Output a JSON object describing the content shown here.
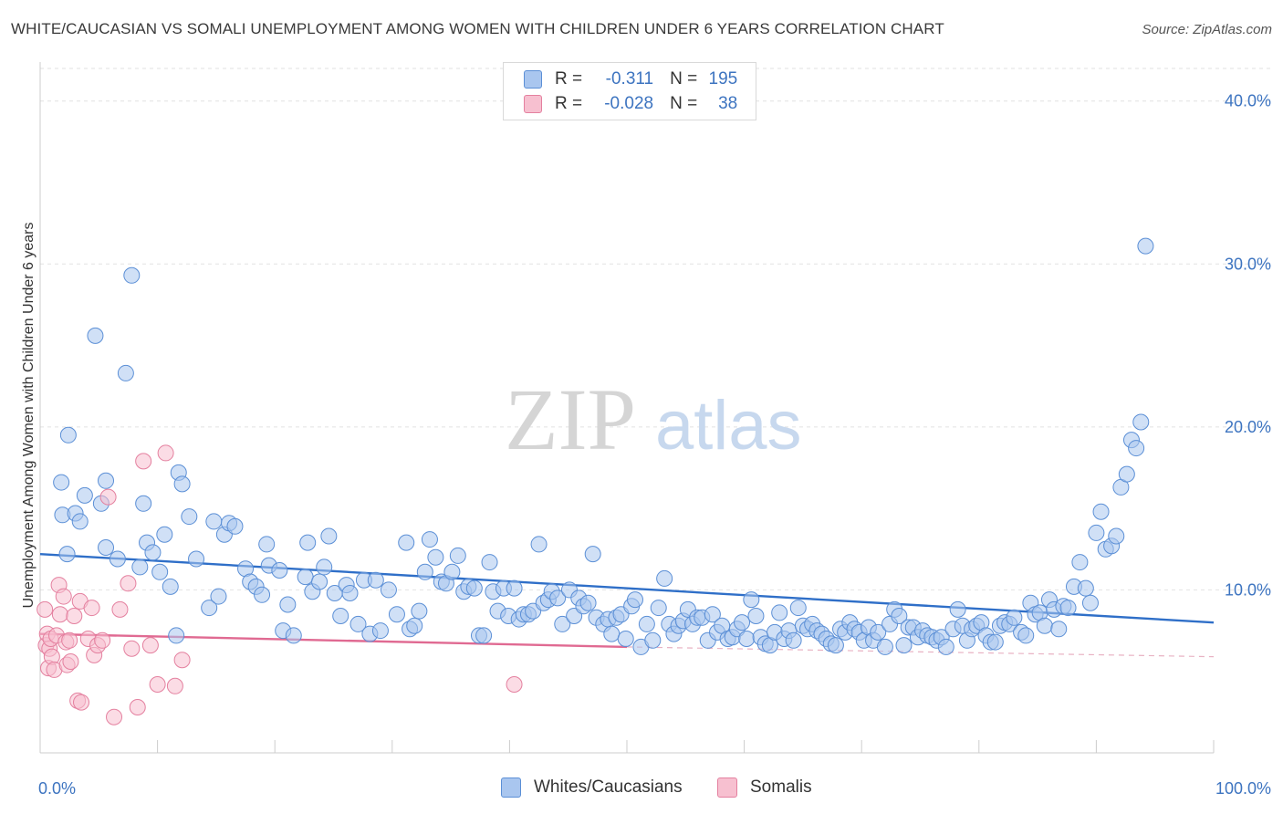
{
  "title": "WHITE/CAUCASIAN VS SOMALI UNEMPLOYMENT AMONG WOMEN WITH CHILDREN UNDER 6 YEARS CORRELATION CHART",
  "source": "Source: ZipAtlas.com",
  "watermark": {
    "zip": "ZIP",
    "atlas": "atlas"
  },
  "legend": {
    "rows": [
      {
        "r_label": "R =",
        "r_value": "-0.311",
        "n_label": "N =",
        "n_value": "195",
        "color": "#a9c6ef",
        "border": "#5b8fd6"
      },
      {
        "r_label": "R =",
        "r_value": "-0.028",
        "n_label": "N =",
        "n_value": "38",
        "color": "#f7c0d0",
        "border": "#e4809f"
      }
    ]
  },
  "bottom_legend": [
    {
      "label": "Whites/Caucasians",
      "color": "#a9c6ef",
      "border": "#5b8fd6"
    },
    {
      "label": "Somalis",
      "color": "#f7c0d0",
      "border": "#e4809f"
    }
  ],
  "chart_data": {
    "type": "scatter",
    "ylabel": "Unemployment Among Women with Children Under 6 years",
    "xlim": [
      0,
      100
    ],
    "ylim": [
      0,
      42
    ],
    "x_tick_labels": [
      {
        "x": 0,
        "label": "0.0%"
      },
      {
        "x": 100,
        "label": "100.0%"
      }
    ],
    "y_tick_labels": [
      {
        "y": 10,
        "label": "10.0%"
      },
      {
        "y": 20,
        "label": "20.0%"
      },
      {
        "y": 30,
        "label": "30.0%"
      },
      {
        "y": 40,
        "label": "40.0%"
      }
    ],
    "gridlines": [
      10,
      20,
      30,
      40
    ],
    "series": [
      {
        "name": "Whites/Caucasians",
        "color": "#a9c6ef",
        "stroke": "#5b8fd6",
        "trend": {
          "x1": 0,
          "y1": 12.2,
          "x2": 100,
          "y2": 8.0,
          "color": "#2f6fc8"
        },
        "points": [
          [
            1.8,
            16.6
          ],
          [
            1.9,
            14.6
          ],
          [
            2.4,
            19.5
          ],
          [
            2.3,
            12.2
          ],
          [
            3.0,
            14.7
          ],
          [
            3.4,
            14.2
          ],
          [
            3.8,
            15.8
          ],
          [
            4.7,
            25.6
          ],
          [
            5.2,
            15.3
          ],
          [
            5.6,
            16.7
          ],
          [
            5.6,
            12.6
          ],
          [
            6.6,
            11.9
          ],
          [
            7.3,
            23.3
          ],
          [
            7.8,
            29.3
          ],
          [
            8.5,
            11.4
          ],
          [
            8.8,
            15.3
          ],
          [
            9.1,
            12.9
          ],
          [
            9.6,
            12.3
          ],
          [
            10.2,
            11.1
          ],
          [
            10.6,
            13.4
          ],
          [
            11.1,
            10.2
          ],
          [
            11.6,
            7.2
          ],
          [
            11.8,
            17.2
          ],
          [
            12.1,
            16.5
          ],
          [
            12.7,
            14.5
          ],
          [
            13.3,
            11.9
          ],
          [
            14.4,
            8.9
          ],
          [
            14.8,
            14.2
          ],
          [
            15.2,
            9.6
          ],
          [
            15.7,
            13.4
          ],
          [
            16.1,
            14.1
          ],
          [
            16.6,
            13.9
          ],
          [
            17.5,
            11.3
          ],
          [
            17.9,
            10.5
          ],
          [
            18.4,
            10.2
          ],
          [
            18.9,
            9.7
          ],
          [
            19.3,
            12.8
          ],
          [
            19.5,
            11.5
          ],
          [
            20.4,
            11.2
          ],
          [
            20.7,
            7.5
          ],
          [
            21.1,
            9.1
          ],
          [
            21.6,
            7.2
          ],
          [
            22.6,
            10.8
          ],
          [
            22.8,
            12.9
          ],
          [
            23.2,
            9.9
          ],
          [
            23.8,
            10.5
          ],
          [
            24.2,
            11.4
          ],
          [
            24.6,
            13.3
          ],
          [
            25.1,
            9.8
          ],
          [
            25.6,
            8.4
          ],
          [
            26.1,
            10.3
          ],
          [
            26.4,
            9.8
          ],
          [
            27.1,
            7.9
          ],
          [
            27.6,
            10.6
          ],
          [
            28.1,
            7.3
          ],
          [
            28.6,
            10.6
          ],
          [
            29.0,
            7.5
          ],
          [
            29.7,
            10.0
          ],
          [
            30.4,
            8.5
          ],
          [
            31.2,
            12.9
          ],
          [
            31.5,
            7.6
          ],
          [
            31.9,
            7.8
          ],
          [
            32.3,
            8.7
          ],
          [
            32.8,
            11.1
          ],
          [
            33.2,
            13.1
          ],
          [
            33.7,
            12.0
          ],
          [
            34.2,
            10.5
          ],
          [
            34.6,
            10.4
          ],
          [
            35.1,
            11.1
          ],
          [
            35.6,
            12.1
          ],
          [
            36.1,
            9.9
          ],
          [
            36.5,
            10.2
          ],
          [
            37.0,
            10.1
          ],
          [
            37.4,
            7.2
          ],
          [
            37.8,
            7.2
          ],
          [
            38.3,
            11.7
          ],
          [
            38.6,
            9.9
          ],
          [
            39.0,
            8.7
          ],
          [
            39.5,
            10.1
          ],
          [
            39.9,
            8.4
          ],
          [
            40.4,
            10.1
          ],
          [
            40.8,
            8.2
          ],
          [
            41.2,
            8.5
          ],
          [
            41.6,
            8.5
          ],
          [
            42.0,
            8.7
          ],
          [
            42.5,
            12.8
          ],
          [
            42.9,
            9.2
          ],
          [
            43.3,
            9.4
          ],
          [
            43.6,
            9.9
          ],
          [
            44.1,
            9.5
          ],
          [
            44.5,
            7.9
          ],
          [
            45.1,
            10.0
          ],
          [
            45.5,
            8.4
          ],
          [
            45.9,
            9.5
          ],
          [
            46.3,
            9.0
          ],
          [
            46.7,
            9.2
          ],
          [
            47.1,
            12.2
          ],
          [
            47.4,
            8.3
          ],
          [
            48.0,
            7.9
          ],
          [
            48.4,
            8.2
          ],
          [
            48.7,
            7.3
          ],
          [
            49.1,
            8.3
          ],
          [
            49.5,
            8.5
          ],
          [
            49.9,
            7.0
          ],
          [
            50.4,
            9.0
          ],
          [
            50.7,
            9.4
          ],
          [
            51.2,
            6.5
          ],
          [
            51.7,
            7.9
          ],
          [
            52.2,
            6.9
          ],
          [
            52.7,
            8.9
          ],
          [
            53.2,
            10.7
          ],
          [
            53.6,
            7.9
          ],
          [
            54.0,
            7.3
          ],
          [
            54.4,
            7.8
          ],
          [
            54.8,
            8.1
          ],
          [
            55.2,
            8.8
          ],
          [
            55.6,
            7.9
          ],
          [
            56.0,
            8.3
          ],
          [
            56.4,
            8.3
          ],
          [
            56.9,
            6.9
          ],
          [
            57.3,
            8.5
          ],
          [
            57.7,
            7.4
          ],
          [
            58.1,
            7.8
          ],
          [
            58.6,
            7.0
          ],
          [
            59.0,
            7.1
          ],
          [
            59.4,
            7.6
          ],
          [
            59.8,
            8.0
          ],
          [
            60.2,
            7.0
          ],
          [
            60.6,
            9.4
          ],
          [
            61.0,
            8.4
          ],
          [
            61.4,
            7.1
          ],
          [
            61.8,
            6.7
          ],
          [
            62.2,
            6.6
          ],
          [
            62.6,
            7.4
          ],
          [
            63.0,
            8.6
          ],
          [
            63.4,
            7.0
          ],
          [
            63.8,
            7.5
          ],
          [
            64.2,
            6.9
          ],
          [
            64.6,
            8.9
          ],
          [
            65.0,
            7.8
          ],
          [
            65.4,
            7.6
          ],
          [
            65.8,
            7.9
          ],
          [
            66.2,
            7.5
          ],
          [
            66.6,
            7.3
          ],
          [
            67.0,
            7.0
          ],
          [
            67.4,
            6.7
          ],
          [
            67.8,
            6.6
          ],
          [
            68.2,
            7.6
          ],
          [
            68.6,
            7.4
          ],
          [
            69.0,
            8.0
          ],
          [
            69.4,
            7.6
          ],
          [
            69.8,
            7.4
          ],
          [
            70.2,
            6.9
          ],
          [
            70.6,
            7.7
          ],
          [
            71.0,
            6.9
          ],
          [
            71.4,
            7.4
          ],
          [
            72.0,
            6.5
          ],
          [
            72.4,
            7.9
          ],
          [
            72.8,
            8.8
          ],
          [
            73.2,
            8.4
          ],
          [
            73.6,
            6.6
          ],
          [
            74.0,
            7.7
          ],
          [
            74.4,
            7.7
          ],
          [
            74.8,
            7.1
          ],
          [
            75.2,
            7.5
          ],
          [
            75.6,
            7.2
          ],
          [
            76.0,
            7.1
          ],
          [
            76.4,
            6.9
          ],
          [
            76.8,
            7.1
          ],
          [
            77.2,
            6.5
          ],
          [
            77.8,
            7.6
          ],
          [
            78.2,
            8.8
          ],
          [
            78.6,
            7.8
          ],
          [
            79.0,
            6.9
          ],
          [
            79.4,
            7.6
          ],
          [
            79.8,
            7.8
          ],
          [
            80.2,
            8.0
          ],
          [
            80.6,
            7.2
          ],
          [
            81.0,
            6.8
          ],
          [
            81.4,
            6.8
          ],
          [
            81.8,
            7.8
          ],
          [
            82.2,
            8.0
          ],
          [
            82.6,
            7.9
          ],
          [
            83.0,
            8.3
          ],
          [
            83.6,
            7.4
          ],
          [
            84.0,
            7.2
          ],
          [
            84.4,
            9.2
          ],
          [
            84.8,
            8.5
          ],
          [
            85.2,
            8.6
          ],
          [
            85.6,
            7.8
          ],
          [
            86.0,
            9.4
          ],
          [
            86.4,
            8.8
          ],
          [
            86.8,
            7.6
          ],
          [
            87.2,
            9.0
          ],
          [
            87.6,
            8.9
          ],
          [
            88.1,
            10.2
          ],
          [
            88.6,
            11.7
          ],
          [
            89.1,
            10.1
          ],
          [
            89.5,
            9.2
          ],
          [
            90.0,
            13.5
          ],
          [
            90.4,
            14.8
          ],
          [
            90.8,
            12.5
          ],
          [
            91.3,
            12.7
          ],
          [
            91.7,
            13.3
          ],
          [
            92.1,
            16.3
          ],
          [
            92.6,
            17.1
          ],
          [
            93.0,
            19.2
          ],
          [
            93.4,
            18.7
          ],
          [
            93.8,
            20.3
          ],
          [
            94.2,
            31.1
          ]
        ]
      },
      {
        "name": "Somalis",
        "color": "#f7c0d0",
        "stroke": "#e4809f",
        "trend": {
          "x1": 0,
          "y1": 7.3,
          "x2": 50,
          "y2": 6.5,
          "color": "#e06a92"
        },
        "trend_extension": {
          "x1": 50,
          "y1": 6.5,
          "x2": 100,
          "y2": 5.9
        },
        "points": [
          [
            0.4,
            8.8
          ],
          [
            0.5,
            6.6
          ],
          [
            0.6,
            7.3
          ],
          [
            0.7,
            5.2
          ],
          [
            0.8,
            6.4
          ],
          [
            0.9,
            7.0
          ],
          [
            1.0,
            5.9
          ],
          [
            1.2,
            5.1
          ],
          [
            1.4,
            7.2
          ],
          [
            1.6,
            10.3
          ],
          [
            1.7,
            8.5
          ],
          [
            2.0,
            9.6
          ],
          [
            2.2,
            6.8
          ],
          [
            2.3,
            5.4
          ],
          [
            2.5,
            6.9
          ],
          [
            2.6,
            5.6
          ],
          [
            2.9,
            8.4
          ],
          [
            3.2,
            3.2
          ],
          [
            3.4,
            9.3
          ],
          [
            3.5,
            3.1
          ],
          [
            4.1,
            7.0
          ],
          [
            4.4,
            8.9
          ],
          [
            4.6,
            6.0
          ],
          [
            4.9,
            6.6
          ],
          [
            5.3,
            6.9
          ],
          [
            5.8,
            15.7
          ],
          [
            6.3,
            2.2
          ],
          [
            6.8,
            8.8
          ],
          [
            7.5,
            10.4
          ],
          [
            7.8,
            6.4
          ],
          [
            8.3,
            2.8
          ],
          [
            8.8,
            17.9
          ],
          [
            9.4,
            6.6
          ],
          [
            10.0,
            4.2
          ],
          [
            10.7,
            18.4
          ],
          [
            11.5,
            4.1
          ],
          [
            12.1,
            5.7
          ],
          [
            40.4,
            4.2
          ]
        ]
      }
    ]
  }
}
